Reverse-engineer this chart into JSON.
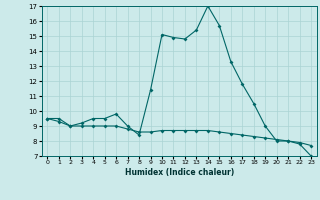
{
  "title": "",
  "xlabel": "Humidex (Indice chaleur)",
  "ylabel": "",
  "bg_color": "#cceaea",
  "grid_color": "#aad4d4",
  "line_color": "#006666",
  "xlim": [
    -0.5,
    23.5
  ],
  "ylim": [
    7,
    17
  ],
  "xticks": [
    0,
    1,
    2,
    3,
    4,
    5,
    6,
    7,
    8,
    9,
    10,
    11,
    12,
    13,
    14,
    15,
    16,
    17,
    18,
    19,
    20,
    21,
    22,
    23
  ],
  "yticks": [
    7,
    8,
    9,
    10,
    11,
    12,
    13,
    14,
    15,
    16,
    17
  ],
  "line1_x": [
    0,
    1,
    2,
    3,
    4,
    5,
    6,
    7,
    8,
    9,
    10,
    11,
    12,
    13,
    14,
    15,
    16,
    17,
    18,
    19,
    20,
    21,
    22,
    23
  ],
  "line1_y": [
    9.5,
    9.5,
    9.0,
    9.2,
    9.5,
    9.5,
    9.8,
    9.0,
    8.4,
    11.4,
    15.1,
    14.9,
    14.8,
    15.4,
    17.0,
    15.7,
    13.3,
    11.8,
    10.5,
    9.0,
    8.0,
    8.0,
    7.8,
    7.0
  ],
  "line2_x": [
    0,
    1,
    2,
    3,
    4,
    5,
    6,
    7,
    8,
    9,
    10,
    11,
    12,
    13,
    14,
    15,
    16,
    17,
    18,
    19,
    20,
    21,
    22,
    23
  ],
  "line2_y": [
    9.5,
    9.3,
    9.0,
    9.0,
    9.0,
    9.0,
    9.0,
    8.8,
    8.6,
    8.6,
    8.7,
    8.7,
    8.7,
    8.7,
    8.7,
    8.6,
    8.5,
    8.4,
    8.3,
    8.2,
    8.1,
    8.0,
    7.9,
    7.7
  ]
}
